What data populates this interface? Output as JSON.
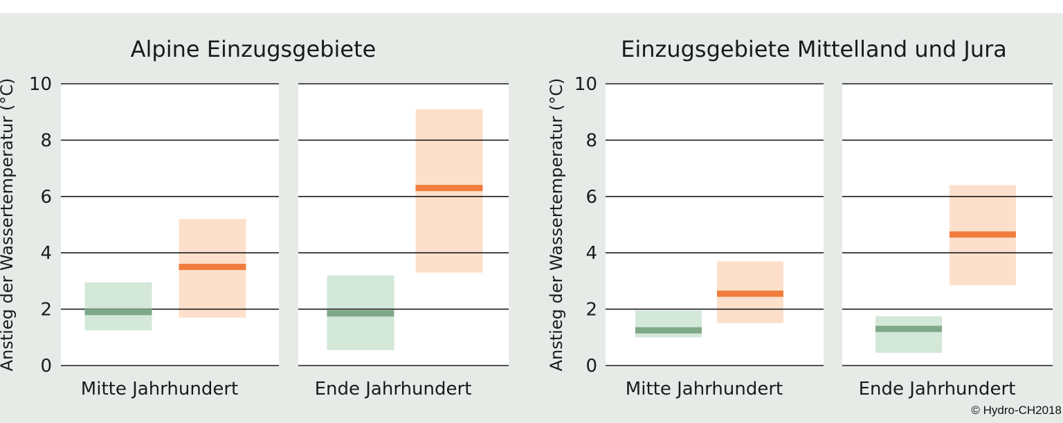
{
  "copyright": "© Hydro-CH2018",
  "colors": {
    "ensemble_a_range": "#d3e8d8",
    "ensemble_a_median": "#7fa888",
    "ensemble_b_range": "#fde0cb",
    "ensemble_b_median": "#f07d3e",
    "grid": "#1a1a1a",
    "plot_bg": "#ffffff",
    "figure_bg": "#e6ebe7"
  },
  "chart_data": [
    {
      "type": "bar",
      "title": "Alpine Einzugsgebiete",
      "ylabel": "Anstieg der Wassertemperatur (°C)",
      "ylim": [
        0,
        10
      ],
      "yticks": [
        0,
        2,
        4,
        6,
        8,
        10
      ],
      "grid": true,
      "panels": [
        {
          "xlabel": "Mitte Jahrhundert",
          "bars": [
            {
              "color_key": "ensemble_a",
              "low": 1.25,
              "high": 2.95,
              "median": 1.9
            },
            {
              "color_key": "ensemble_b",
              "low": 1.7,
              "high": 5.2,
              "median": 3.5
            }
          ]
        },
        {
          "xlabel": "Ende Jahrhundert",
          "bars": [
            {
              "color_key": "ensemble_a",
              "low": 0.55,
              "high": 3.2,
              "median": 1.85
            },
            {
              "color_key": "ensemble_b",
              "low": 3.3,
              "high": 9.1,
              "median": 6.3
            }
          ]
        }
      ]
    },
    {
      "type": "bar",
      "title": "Einzugsgebiete Mittelland und Jura",
      "ylabel": "Anstieg der Wassertemperatur (°C)",
      "ylim": [
        0,
        10
      ],
      "yticks": [
        0,
        2,
        4,
        6,
        8,
        10
      ],
      "grid": true,
      "panels": [
        {
          "xlabel": "Mitte Jahrhundert",
          "bars": [
            {
              "color_key": "ensemble_a",
              "low": 1.0,
              "high": 1.95,
              "median": 1.25
            },
            {
              "color_key": "ensemble_b",
              "low": 1.5,
              "high": 3.7,
              "median": 2.55
            }
          ]
        },
        {
          "xlabel": "Ende Jahrhundert",
          "bars": [
            {
              "color_key": "ensemble_a",
              "low": 0.45,
              "high": 1.75,
              "median": 1.3
            },
            {
              "color_key": "ensemble_b",
              "low": 2.85,
              "high": 6.4,
              "median": 4.65
            }
          ]
        }
      ]
    }
  ]
}
